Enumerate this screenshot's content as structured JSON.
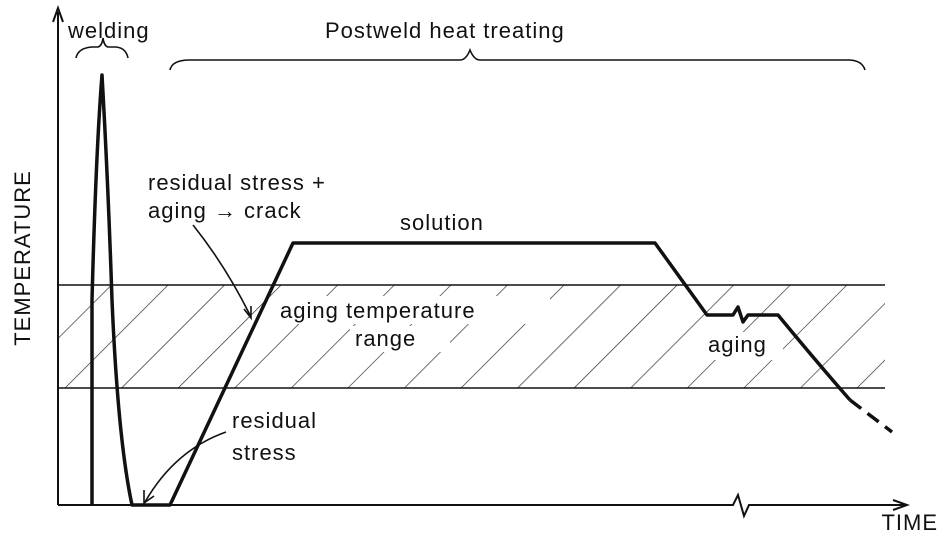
{
  "axes": {
    "y_label": "TEMPERATURE",
    "x_label": "TIME"
  },
  "phases": {
    "welding": "welding",
    "postweld": "Postweld heat treating"
  },
  "annotations": {
    "crack_line1": "residual stress +",
    "crack_line2": "aging → crack",
    "solution": "solution",
    "range_line1": "aging temperature",
    "range_line2": "range",
    "aging": "aging",
    "stress_line1": "residual",
    "stress_line2": "stress"
  }
}
